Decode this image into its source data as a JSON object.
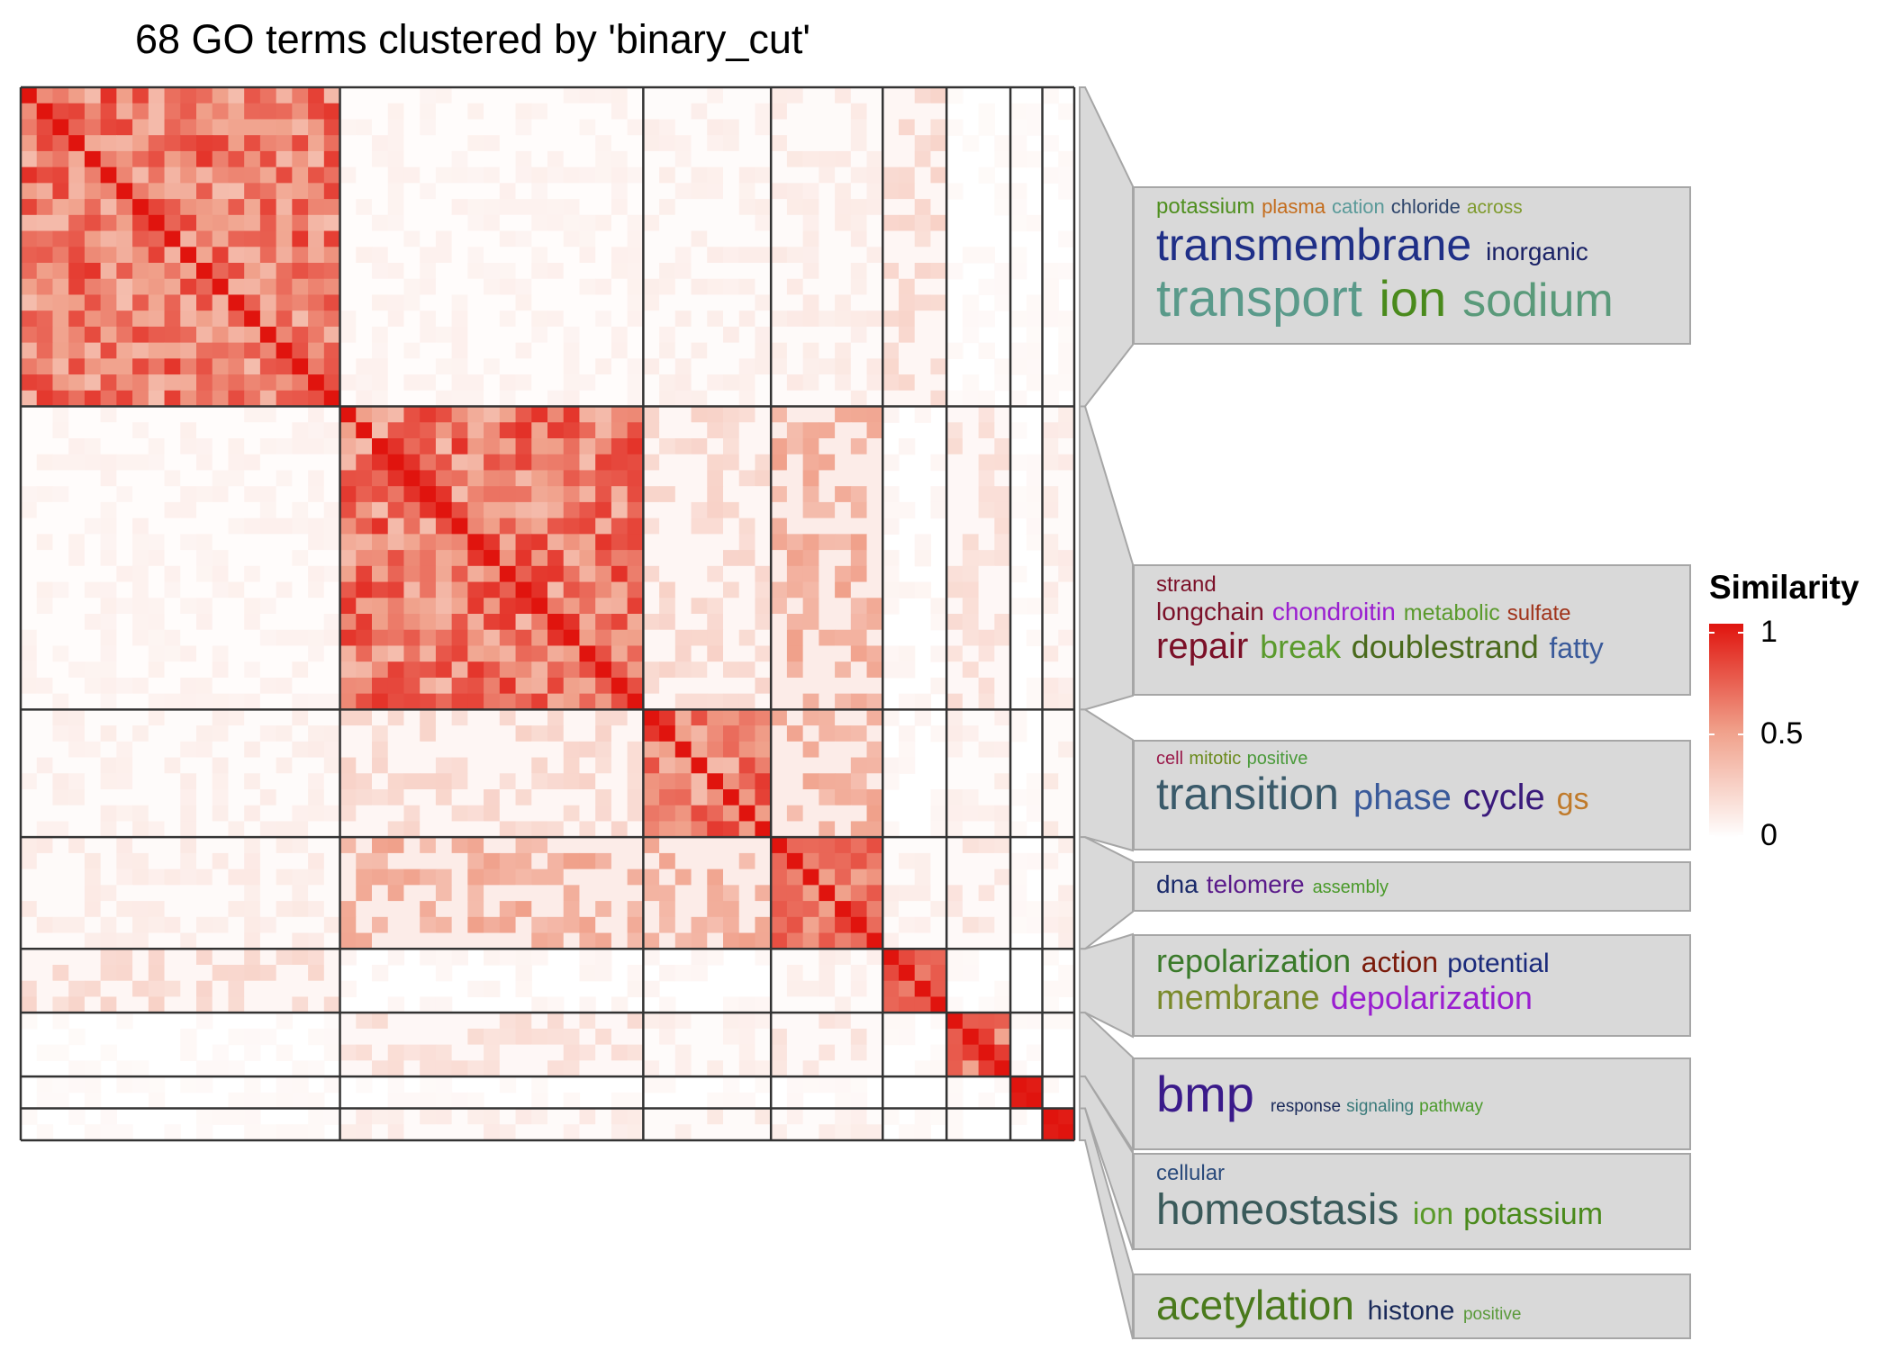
{
  "chart_data": {
    "type": "heatmap",
    "title": "68 GO terms clustered by 'binary_cut'",
    "n_terms": 68,
    "clusters": [
      {
        "size": 20,
        "word_cloud": [
          [
            {
              "w": "potassium",
              "s": 24,
              "c": "#4f8f1f"
            },
            {
              "w": "plasma",
              "s": 22,
              "c": "#c46c1c"
            },
            {
              "w": "cation",
              "s": 22,
              "c": "#5a9a99"
            },
            {
              "w": "chloride",
              "s": 22,
              "c": "#2e456b"
            },
            {
              "w": "across",
              "s": 21,
              "c": "#7e9a2c"
            }
          ],
          [
            {
              "w": "transmembrane",
              "s": 50,
              "c": "#1f2f87"
            },
            {
              "w": "inorganic",
              "s": 28,
              "c": "#1a2266"
            }
          ],
          [
            {
              "w": "transport",
              "s": 58,
              "c": "#5a9a8a"
            },
            {
              "w": "ion",
              "s": 56,
              "c": "#4a8a1c"
            },
            {
              "w": "sodium",
              "s": 52,
              "c": "#5a9a7a"
            }
          ]
        ]
      },
      {
        "size": 19,
        "word_cloud": [
          [
            {
              "w": "strand",
              "s": 24,
              "c": "#7b1028"
            }
          ],
          [
            {
              "w": "longchain",
              "s": 28,
              "c": "#7b1028"
            },
            {
              "w": "chondroitin",
              "s": 28,
              "c": "#9a1ed0"
            },
            {
              "w": "metabolic",
              "s": 25,
              "c": "#5a9a2c"
            },
            {
              "w": "sulfate",
              "s": 24,
              "c": "#a0331a"
            }
          ],
          [
            {
              "w": "repair",
              "s": 40,
              "c": "#7b1028"
            },
            {
              "w": "break",
              "s": 36,
              "c": "#5a9a2c"
            },
            {
              "w": "doublestrand",
              "s": 36,
              "c": "#4a6a1c"
            },
            {
              "w": "fatty",
              "s": 32,
              "c": "#3a5a9a"
            }
          ]
        ]
      },
      {
        "size": 8,
        "word_cloud": [
          [
            {
              "w": "cell",
              "s": 20,
              "c": "#9a1a4a"
            },
            {
              "w": "mitotic",
              "s": 20,
              "c": "#6a8a1c"
            },
            {
              "w": "positive",
              "s": 20,
              "c": "#4a9a3a"
            }
          ],
          [
            {
              "w": "transition",
              "s": 50,
              "c": "#3a5a6a"
            },
            {
              "w": "phase",
              "s": 40,
              "c": "#3a5a9a"
            },
            {
              "w": "cycle",
              "s": 40,
              "c": "#3a1a7b"
            },
            {
              "w": "gs",
              "s": 34,
              "c": "#c07a2a"
            }
          ]
        ]
      },
      {
        "size": 7,
        "word_cloud": [
          [
            {
              "w": "dna",
              "s": 28,
              "c": "#1a2a6a"
            },
            {
              "w": "telomere",
              "s": 28,
              "c": "#5a1a8a"
            },
            {
              "w": "assembly",
              "s": 20,
              "c": "#4a9a2a"
            }
          ]
        ]
      },
      {
        "size": 4,
        "word_cloud": [
          [
            {
              "w": "repolarization",
              "s": 36,
              "c": "#3a7a2a"
            },
            {
              "w": "action",
              "s": 32,
              "c": "#7a1a0a"
            },
            {
              "w": "potential",
              "s": 30,
              "c": "#1a2a7b"
            }
          ],
          [
            {
              "w": "membrane",
              "s": 38,
              "c": "#7a8a2a"
            },
            {
              "w": "depolarization",
              "s": 36,
              "c": "#9a1ed0"
            }
          ]
        ]
      },
      {
        "size": 4,
        "word_cloud": [
          [
            {
              "w": "bmp",
              "s": 56,
              "c": "#3a1a8a"
            },
            {
              "w": "response",
              "s": 19,
              "c": "#1a2a5a"
            },
            {
              "w": "signaling",
              "s": 19,
              "c": "#3a7a7a"
            },
            {
              "w": "pathway",
              "s": 19,
              "c": "#4a9a2a"
            }
          ]
        ]
      },
      {
        "size": 2,
        "word_cloud": [
          [
            {
              "w": "cellular",
              "s": 24,
              "c": "#2a4a7b"
            }
          ],
          [
            {
              "w": "homeostasis",
              "s": 48,
              "c": "#3a5a5a"
            },
            {
              "w": "ion",
              "s": 34,
              "c": "#5a9a2a"
            },
            {
              "w": "potassium",
              "s": 34,
              "c": "#4a8a1c"
            }
          ]
        ]
      },
      {
        "size": 2,
        "word_cloud": [
          [
            {
              "w": "acetylation",
              "s": 46,
              "c": "#4a7a1c"
            },
            {
              "w": "histone",
              "s": 30,
              "c": "#1a2a5a"
            },
            {
              "w": "positive",
              "s": 19,
              "c": "#5a9a3a"
            }
          ]
        ]
      }
    ],
    "color_scale": {
      "title": "Similarity",
      "ticks": [
        "1",
        "0.5",
        "0"
      ],
      "low": "#ffffff",
      "high": "#e0140e"
    }
  }
}
